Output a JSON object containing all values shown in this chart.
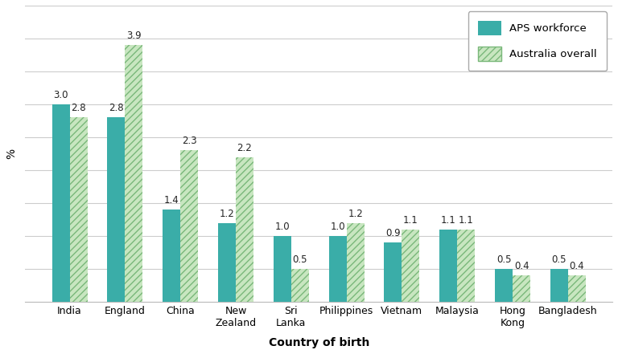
{
  "categories": [
    "India",
    "England",
    "China",
    "New\nZealand",
    "Sri\nLanka",
    "Philippines",
    "Vietnam",
    "Malaysia",
    "Hong\nKong",
    "Bangladesh"
  ],
  "aps_values": [
    3.0,
    2.8,
    1.4,
    1.2,
    1.0,
    1.0,
    0.9,
    1.1,
    0.5,
    0.5
  ],
  "aus_values": [
    2.8,
    3.9,
    2.3,
    2.2,
    0.5,
    1.2,
    1.1,
    1.1,
    0.4,
    0.4
  ],
  "aps_color": "#3aada8",
  "aus_facecolor": "#c8e6c0",
  "aus_hatch_color": "#7ab87a",
  "aus_hatch": "////",
  "ylabel": "%",
  "xlabel": "Country of birth",
  "legend_aps": "APS workforce",
  "legend_aus": "Australia overall",
  "ylim": [
    0,
    4.5
  ],
  "bar_width": 0.32,
  "label_fontsize": 8.5,
  "axis_label_fontsize": 10,
  "tick_fontsize": 9,
  "background_color": "#ffffff",
  "grid_color": "#cccccc"
}
